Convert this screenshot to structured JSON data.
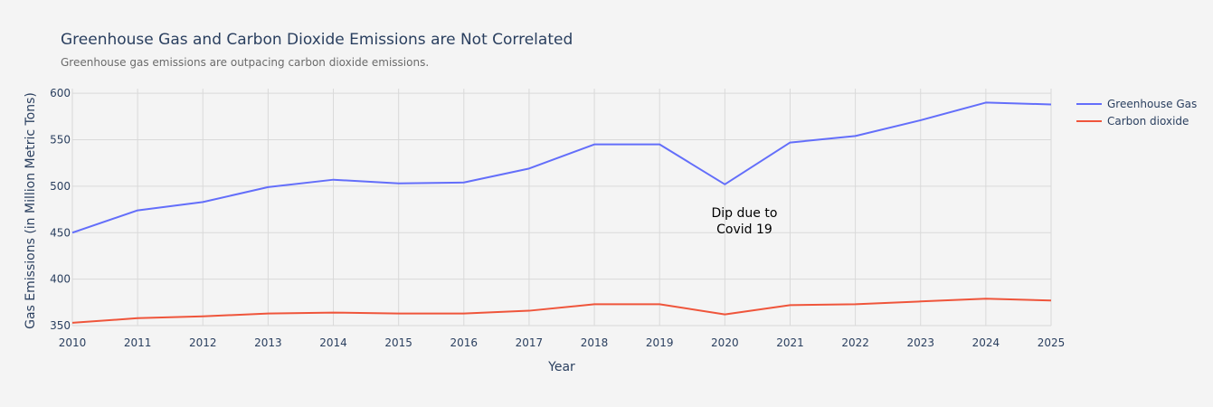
{
  "chart_data": {
    "type": "line",
    "title": "Greenhouse Gas and Carbon Dioxide Emissions are Not Correlated",
    "subtitle": "Greenhouse gas emissions are outpacing carbon dioxide emissions.",
    "xlabel": "Year",
    "ylabel": "Gas Emissions (in Million Metric Tons)",
    "x": [
      2010,
      2011,
      2012,
      2013,
      2014,
      2015,
      2016,
      2017,
      2018,
      2019,
      2020,
      2021,
      2022,
      2023,
      2024,
      2025
    ],
    "xlim": [
      2010,
      2025
    ],
    "ylim": [
      350,
      605
    ],
    "yticks": [
      350,
      400,
      450,
      500,
      550,
      600
    ],
    "grid": true,
    "legend_position": "top-right",
    "series": [
      {
        "name": "Greenhouse Gas",
        "color": "#636efa",
        "values": [
          450,
          474,
          483,
          499,
          507,
          503,
          504,
          519,
          545,
          545,
          502,
          547,
          554,
          571,
          590,
          588
        ]
      },
      {
        "name": "Carbon dioxide",
        "color": "#ef553b",
        "values": [
          353,
          358,
          360,
          363,
          364,
          363,
          363,
          366,
          373,
          373,
          362,
          372,
          373,
          376,
          379,
          377
        ]
      }
    ],
    "annotations": [
      {
        "x": 2020.3,
        "y": 467,
        "lines": [
          "Dip due to",
          "Covid 19"
        ]
      }
    ]
  }
}
